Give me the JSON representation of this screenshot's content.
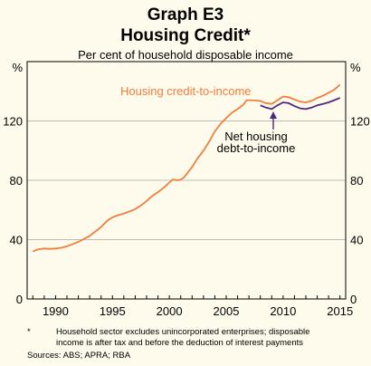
{
  "header": {
    "graph_id": "Graph E3",
    "title": "Housing Credit*",
    "subtitle": "Per cent of household disposable income"
  },
  "chart_data": {
    "type": "line",
    "xlim": [
      1987.5,
      2015.5
    ],
    "ylim": [
      0,
      160
    ],
    "y_ticks": [
      0,
      40,
      80,
      120
    ],
    "y_unit_label": "%",
    "x_ticks": [
      1990,
      1995,
      2000,
      2005,
      2010,
      2015
    ],
    "grid": true,
    "series": [
      {
        "name": "Housing credit-to-income",
        "color": "#f07f3c",
        "points": [
          [
            1988.0,
            32
          ],
          [
            1988.5,
            33.5
          ],
          [
            1989.0,
            34
          ],
          [
            1989.5,
            33.8
          ],
          [
            1990.0,
            34
          ],
          [
            1990.5,
            34.5
          ],
          [
            1991.0,
            35.5
          ],
          [
            1991.5,
            37
          ],
          [
            1992.0,
            38.5
          ],
          [
            1992.5,
            40.5
          ],
          [
            1993.0,
            42.5
          ],
          [
            1993.5,
            45.5
          ],
          [
            1994.0,
            48.5
          ],
          [
            1994.5,
            52.5
          ],
          [
            1995.0,
            55
          ],
          [
            1995.5,
            56.5
          ],
          [
            1996.0,
            57.5
          ],
          [
            1996.5,
            59
          ],
          [
            1997.0,
            60.5
          ],
          [
            1997.5,
            63
          ],
          [
            1998.0,
            66
          ],
          [
            1998.5,
            69.5
          ],
          [
            1999.0,
            72
          ],
          [
            1999.5,
            75
          ],
          [
            2000.0,
            78.5
          ],
          [
            2000.3,
            80.5
          ],
          [
            2000.7,
            80
          ],
          [
            2001.0,
            80.5
          ],
          [
            2001.3,
            82
          ],
          [
            2001.7,
            86
          ],
          [
            2002.0,
            89
          ],
          [
            2002.5,
            95
          ],
          [
            2003.0,
            100
          ],
          [
            2003.5,
            106
          ],
          [
            2004.0,
            113
          ],
          [
            2004.5,
            118
          ],
          [
            2005.0,
            122
          ],
          [
            2005.5,
            125.5
          ],
          [
            2006.0,
            128
          ],
          [
            2006.5,
            131
          ],
          [
            2006.8,
            134
          ],
          [
            2007.0,
            134
          ],
          [
            2007.5,
            133.8
          ],
          [
            2008.0,
            133.5
          ],
          [
            2008.5,
            132
          ],
          [
            2009.0,
            131.5
          ],
          [
            2009.5,
            134
          ],
          [
            2010.0,
            136.5
          ],
          [
            2010.5,
            136
          ],
          [
            2011.0,
            134.5
          ],
          [
            2011.5,
            133
          ],
          [
            2012.0,
            132.5
          ],
          [
            2012.5,
            133.5
          ],
          [
            2013.0,
            135.5
          ],
          [
            2013.5,
            137
          ],
          [
            2014.0,
            139
          ],
          [
            2014.5,
            141
          ],
          [
            2015.0,
            144.5
          ]
        ]
      },
      {
        "name": "Net housing debt-to-income",
        "color": "#4b2a7d",
        "points": [
          [
            2008.0,
            130.5
          ],
          [
            2008.5,
            129
          ],
          [
            2009.0,
            128
          ],
          [
            2009.5,
            130.5
          ],
          [
            2010.0,
            132.5
          ],
          [
            2010.5,
            132
          ],
          [
            2011.0,
            130
          ],
          [
            2011.5,
            128.5
          ],
          [
            2012.0,
            128
          ],
          [
            2012.5,
            129
          ],
          [
            2013.0,
            130.5
          ],
          [
            2013.5,
            131.5
          ],
          [
            2014.0,
            132.5
          ],
          [
            2014.5,
            134
          ],
          [
            2015.0,
            135.5
          ]
        ]
      }
    ],
    "annotations": {
      "series1_label": "Housing credit-to-income",
      "series2_label_line1": "Net housing",
      "series2_label_line2": "debt-to-income"
    }
  },
  "footnotes": {
    "star": "*",
    "note_line1": "Household sector excludes unincorporated enterprises; disposable",
    "note_line2": "income is after tax and before the deduction of interest payments",
    "sources": "Sources:  ABS; APRA; RBA"
  }
}
